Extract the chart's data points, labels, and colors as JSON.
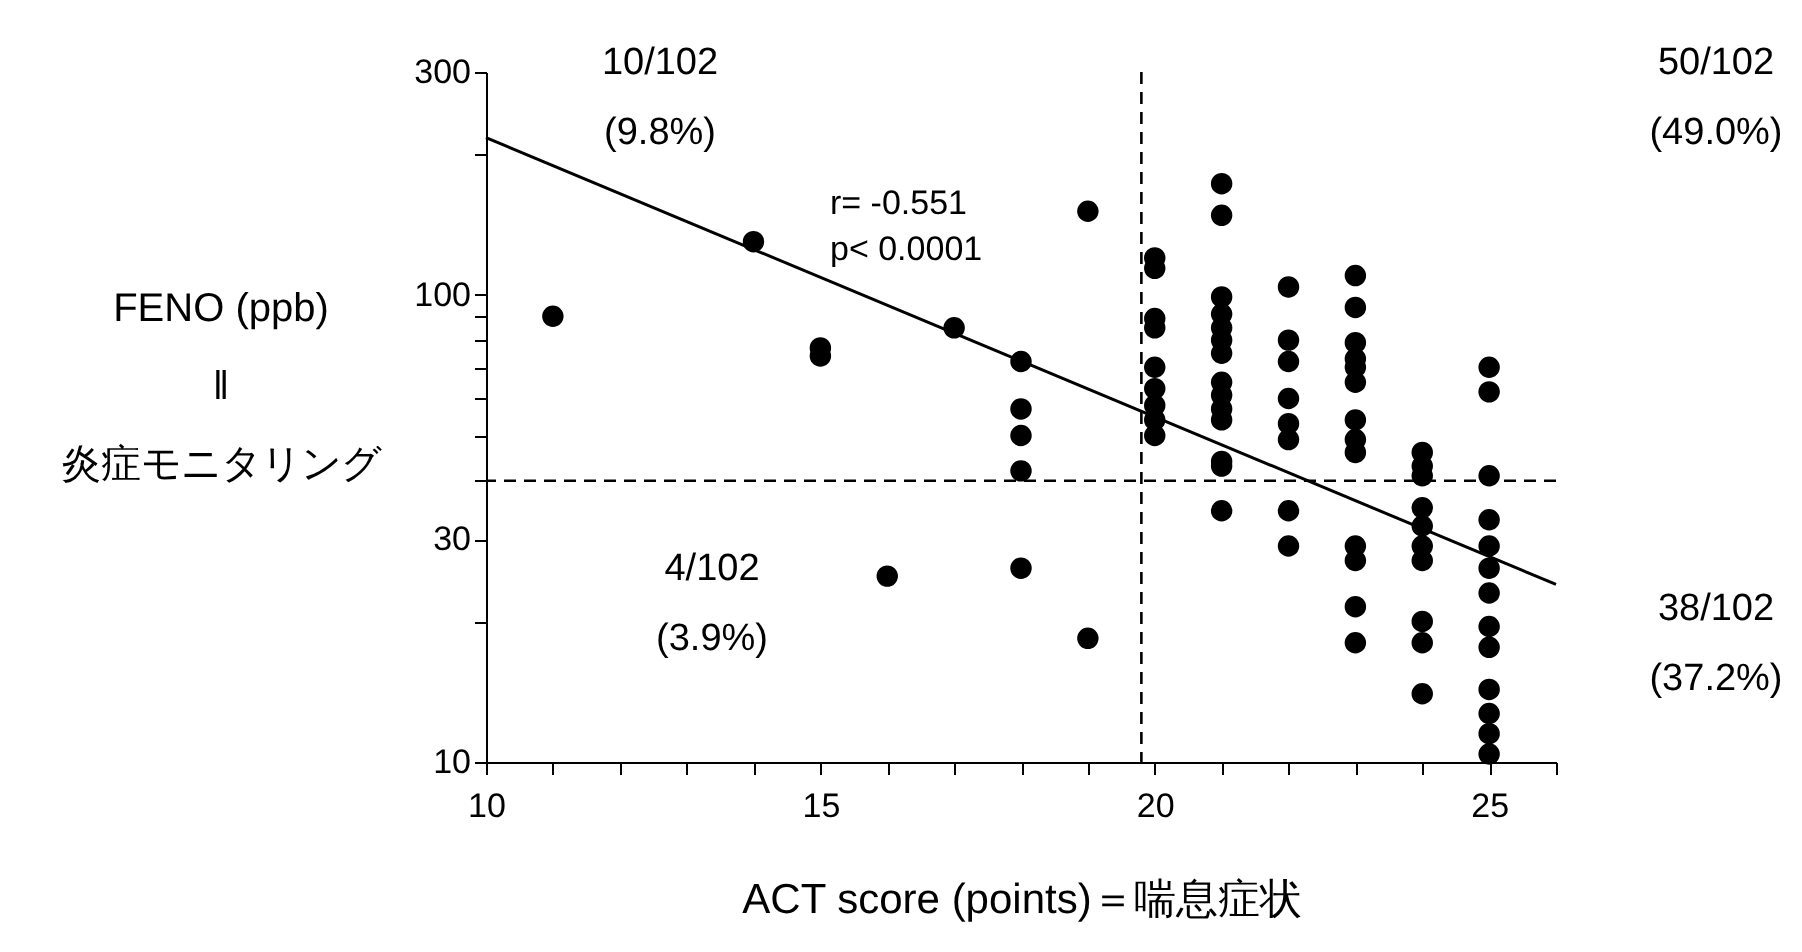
{
  "chart_data": {
    "type": "scatter",
    "xlabel": "ACT score (points)＝喘息症状",
    "ylabel": "FENO (ppb)\n‖\n炎症モニタリング",
    "xlim": [
      10,
      26
    ],
    "xticks": [
      10,
      {
        "value": 11,
        "label": null
      },
      {
        "value": 12,
        "label": null
      },
      {
        "value": 13,
        "label": null
      },
      {
        "value": 14,
        "label": null
      },
      15,
      {
        "value": 16,
        "label": null
      },
      {
        "value": 17,
        "label": null
      },
      {
        "value": 18,
        "label": null
      },
      {
        "value": 19,
        "label": null
      },
      20,
      {
        "value": 21,
        "label": null
      },
      {
        "value": 22,
        "label": null
      },
      {
        "value": 23,
        "label": null
      },
      {
        "value": 24,
        "label": null
      },
      25,
      {
        "value": 26,
        "label": null
      }
    ],
    "ylim": [
      10,
      300
    ],
    "yticks": [
      10,
      {
        "value": 20,
        "label": null
      },
      30,
      {
        "value": 40,
        "label": null
      },
      {
        "value": 50,
        "label": null
      },
      {
        "value": 60,
        "label": null
      },
      {
        "value": 70,
        "label": null
      },
      {
        "value": 80,
        "label": null
      },
      {
        "value": 90,
        "label": null
      },
      100,
      {
        "value": 200,
        "label": null
      },
      300
    ],
    "log": "y",
    "grid": false,
    "marker": "circle",
    "series": [
      {
        "color": "#000000",
        "x": [
          11,
          14,
          15,
          15,
          16,
          17,
          18,
          18,
          18,
          18,
          18,
          19,
          19,
          20,
          20,
          20,
          20,
          20,
          20,
          20,
          20,
          20,
          21,
          21,
          21,
          21,
          21,
          21,
          21,
          21,
          21,
          21,
          21,
          21,
          21,
          21,
          22,
          22,
          22,
          22,
          22,
          22,
          22,
          22,
          23,
          23,
          23,
          23,
          23,
          23,
          23,
          23,
          23,
          23,
          23,
          23,
          23,
          24,
          24,
          24,
          24,
          24,
          24,
          24,
          24,
          24,
          24,
          25,
          25,
          25,
          25,
          25,
          25,
          25,
          25,
          25,
          25,
          25,
          25,
          25
        ],
        "values": [
          90,
          130,
          77,
          74,
          25,
          85,
          72,
          57,
          50,
          42,
          26,
          151,
          18.4,
          120,
          114,
          89,
          85,
          70,
          63,
          58,
          54,
          50,
          173,
          148,
          99,
          91,
          85,
          80,
          75,
          65,
          61,
          57,
          54,
          44,
          43,
          34.5,
          104,
          80,
          72,
          60,
          53,
          49,
          34.5,
          29,
          110,
          94,
          79,
          73,
          70,
          65,
          54,
          49,
          46,
          29,
          27,
          21.5,
          18,
          46,
          43,
          41,
          35,
          32,
          29,
          27,
          20,
          18,
          14,
          70,
          62,
          41,
          33,
          29,
          26,
          23,
          19.5,
          17.6,
          14.3,
          12.7,
          11.5,
          10.4
        ]
      },
      {
        "type": "line",
        "color": "#000000",
        "line_style": "solid",
        "marker": "none",
        "x": [
          10,
          26
        ],
        "values": [
          217,
          24
        ]
      }
    ],
    "ref_lines": [
      {
        "axis": "x",
        "value": 19.8,
        "label": null,
        "color": "#000000",
        "line_style": "dashed"
      },
      {
        "axis": "y",
        "value": 40,
        "label": null,
        "color": "#000000",
        "line_style": "dashed"
      }
    ],
    "annotations": [
      "10/102\n(9.8%)",
      "50/102\n(49.0%)",
      "r= -0.551\np< 0.0001",
      "4/102\n(3.9%)",
      "38/102\n(37.2%)"
    ]
  }
}
